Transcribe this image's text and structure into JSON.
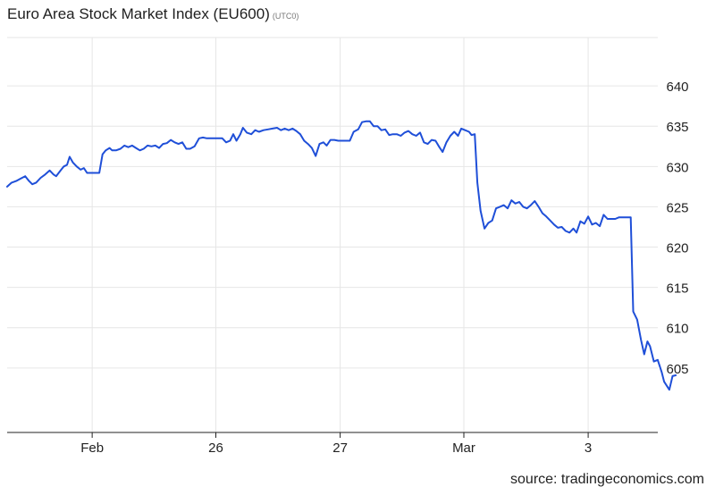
{
  "chart_data": {
    "type": "line",
    "title": "Euro Area Stock Market Index (EU600)",
    "subtitle": "(UTC0)",
    "source": "source: tradingeconomics.com",
    "line_color": "#1f4fd8",
    "grid_color": "#e6e6e6",
    "ylim": [
      597,
      646
    ],
    "yticks": [
      605,
      610,
      615,
      620,
      625,
      630,
      635,
      640
    ],
    "xlim": [
      0,
      100
    ],
    "xticks": [
      {
        "x": 13.2,
        "label": "Feb"
      },
      {
        "x": 32.4,
        "label": "26"
      },
      {
        "x": 51.7,
        "label": "27"
      },
      {
        "x": 70.9,
        "label": "Mar"
      },
      {
        "x": 90.2,
        "label": "3"
      }
    ],
    "series": [
      {
        "points": [
          [
            0.0,
            627.5
          ],
          [
            0.7,
            628.0
          ],
          [
            1.4,
            628.2
          ],
          [
            2.1,
            628.5
          ],
          [
            2.8,
            628.8
          ],
          [
            3.4,
            628.2
          ],
          [
            3.9,
            627.8
          ],
          [
            4.5,
            628.0
          ],
          [
            5.2,
            628.6
          ],
          [
            5.9,
            629.0
          ],
          [
            6.6,
            629.5
          ],
          [
            7.2,
            629.0
          ],
          [
            7.6,
            628.8
          ],
          [
            8.3,
            629.5
          ],
          [
            8.8,
            630.0
          ],
          [
            9.3,
            630.2
          ],
          [
            9.7,
            631.2
          ],
          [
            10.2,
            630.5
          ],
          [
            10.8,
            630.0
          ],
          [
            11.4,
            629.6
          ],
          [
            11.9,
            629.8
          ],
          [
            12.4,
            629.2
          ],
          [
            13.0,
            629.2
          ],
          [
            13.7,
            629.2
          ],
          [
            14.3,
            629.2
          ],
          [
            14.8,
            631.5
          ],
          [
            15.3,
            632.0
          ],
          [
            15.9,
            632.3
          ],
          [
            16.3,
            632.0
          ],
          [
            16.9,
            632.0
          ],
          [
            17.6,
            632.2
          ],
          [
            18.2,
            632.6
          ],
          [
            18.8,
            632.4
          ],
          [
            19.4,
            632.6
          ],
          [
            20.0,
            632.3
          ],
          [
            20.6,
            632.0
          ],
          [
            21.2,
            632.2
          ],
          [
            21.8,
            632.6
          ],
          [
            22.4,
            632.5
          ],
          [
            23.0,
            632.6
          ],
          [
            23.6,
            632.3
          ],
          [
            24.2,
            632.8
          ],
          [
            24.8,
            632.9
          ],
          [
            25.4,
            633.3
          ],
          [
            26.0,
            633.0
          ],
          [
            26.6,
            632.8
          ],
          [
            27.2,
            633.0
          ],
          [
            27.8,
            632.2
          ],
          [
            28.4,
            632.2
          ],
          [
            29.1,
            632.5
          ],
          [
            29.8,
            633.5
          ],
          [
            30.4,
            633.6
          ],
          [
            31.0,
            633.5
          ],
          [
            31.6,
            633.5
          ],
          [
            32.2,
            633.5
          ],
          [
            32.8,
            633.5
          ],
          [
            33.4,
            633.5
          ],
          [
            34.0,
            633.0
          ],
          [
            34.6,
            633.2
          ],
          [
            35.1,
            634.0
          ],
          [
            35.6,
            633.2
          ],
          [
            36.2,
            634.0
          ],
          [
            36.6,
            634.8
          ],
          [
            37.2,
            634.2
          ],
          [
            37.9,
            634.0
          ],
          [
            38.5,
            634.5
          ],
          [
            39.1,
            634.3
          ],
          [
            39.8,
            634.5
          ],
          [
            40.5,
            634.6
          ],
          [
            41.2,
            634.7
          ],
          [
            41.9,
            634.8
          ],
          [
            42.5,
            634.5
          ],
          [
            43.1,
            634.7
          ],
          [
            43.7,
            634.5
          ],
          [
            44.3,
            634.7
          ],
          [
            44.9,
            634.4
          ],
          [
            45.5,
            634.0
          ],
          [
            46.1,
            633.2
          ],
          [
            46.7,
            632.8
          ],
          [
            47.3,
            632.3
          ],
          [
            47.9,
            631.3
          ],
          [
            48.5,
            632.8
          ],
          [
            49.1,
            633.0
          ],
          [
            49.6,
            632.6
          ],
          [
            50.2,
            633.3
          ],
          [
            50.8,
            633.3
          ],
          [
            51.4,
            633.2
          ],
          [
            52.0,
            633.2
          ],
          [
            52.6,
            633.2
          ],
          [
            53.2,
            633.2
          ],
          [
            53.8,
            634.3
          ],
          [
            54.5,
            634.6
          ],
          [
            55.1,
            635.5
          ],
          [
            55.7,
            635.6
          ],
          [
            56.3,
            635.6
          ],
          [
            56.9,
            635.0
          ],
          [
            57.5,
            635.0
          ],
          [
            58.1,
            634.5
          ],
          [
            58.7,
            634.6
          ],
          [
            59.3,
            633.9
          ],
          [
            59.9,
            634.0
          ],
          [
            60.5,
            634.0
          ],
          [
            61.1,
            633.8
          ],
          [
            61.7,
            634.2
          ],
          [
            62.3,
            634.4
          ],
          [
            62.9,
            634.0
          ],
          [
            63.5,
            633.8
          ],
          [
            64.1,
            634.2
          ],
          [
            64.7,
            633.0
          ],
          [
            65.3,
            632.8
          ],
          [
            65.9,
            633.3
          ],
          [
            66.5,
            633.2
          ],
          [
            67.1,
            632.4
          ],
          [
            67.6,
            631.8
          ],
          [
            68.2,
            633.0
          ],
          [
            68.8,
            633.8
          ],
          [
            69.4,
            634.3
          ],
          [
            70.0,
            633.8
          ],
          [
            70.5,
            634.7
          ],
          [
            71.1,
            634.5
          ],
          [
            71.7,
            634.3
          ],
          [
            72.1,
            633.9
          ],
          [
            72.6,
            634.0
          ],
          [
            73.0,
            628.0
          ],
          [
            73.5,
            624.5
          ],
          [
            74.1,
            622.3
          ],
          [
            74.7,
            623.0
          ],
          [
            75.3,
            623.3
          ],
          [
            75.9,
            624.8
          ],
          [
            76.5,
            625.0
          ],
          [
            77.1,
            625.2
          ],
          [
            77.7,
            624.8
          ],
          [
            78.3,
            625.8
          ],
          [
            78.9,
            625.4
          ],
          [
            79.5,
            625.6
          ],
          [
            80.1,
            625.0
          ],
          [
            80.7,
            624.8
          ],
          [
            81.3,
            625.2
          ],
          [
            81.9,
            625.7
          ],
          [
            82.5,
            625.0
          ],
          [
            83.1,
            624.2
          ],
          [
            83.7,
            623.8
          ],
          [
            84.3,
            623.3
          ],
          [
            84.9,
            622.8
          ],
          [
            85.5,
            622.4
          ],
          [
            86.1,
            622.5
          ],
          [
            86.7,
            622.0
          ],
          [
            87.3,
            621.8
          ],
          [
            87.9,
            622.3
          ],
          [
            88.4,
            621.8
          ],
          [
            89.0,
            623.2
          ],
          [
            89.6,
            622.9
          ],
          [
            90.2,
            623.8
          ],
          [
            90.8,
            622.8
          ],
          [
            91.4,
            623.0
          ],
          [
            92.0,
            622.6
          ],
          [
            92.6,
            624.0
          ],
          [
            93.2,
            623.5
          ],
          [
            93.8,
            623.5
          ],
          [
            94.4,
            623.5
          ],
          [
            95.0,
            623.7
          ],
          [
            95.6,
            623.7
          ],
          [
            96.2,
            623.7
          ],
          [
            96.8,
            623.7
          ],
          [
            97.2,
            612.0
          ],
          [
            97.8,
            611.0
          ],
          [
            98.4,
            608.5
          ],
          [
            98.9,
            606.7
          ],
          [
            99.4,
            608.3
          ],
          [
            99.8,
            607.7
          ],
          [
            100.4,
            605.8
          ],
          [
            101.0,
            606.0
          ],
          [
            101.6,
            604.5
          ],
          [
            102.0,
            603.3
          ],
          [
            102.8,
            602.3
          ],
          [
            103.3,
            604.0
          ],
          [
            103.8,
            604.1
          ]
        ]
      }
    ]
  }
}
